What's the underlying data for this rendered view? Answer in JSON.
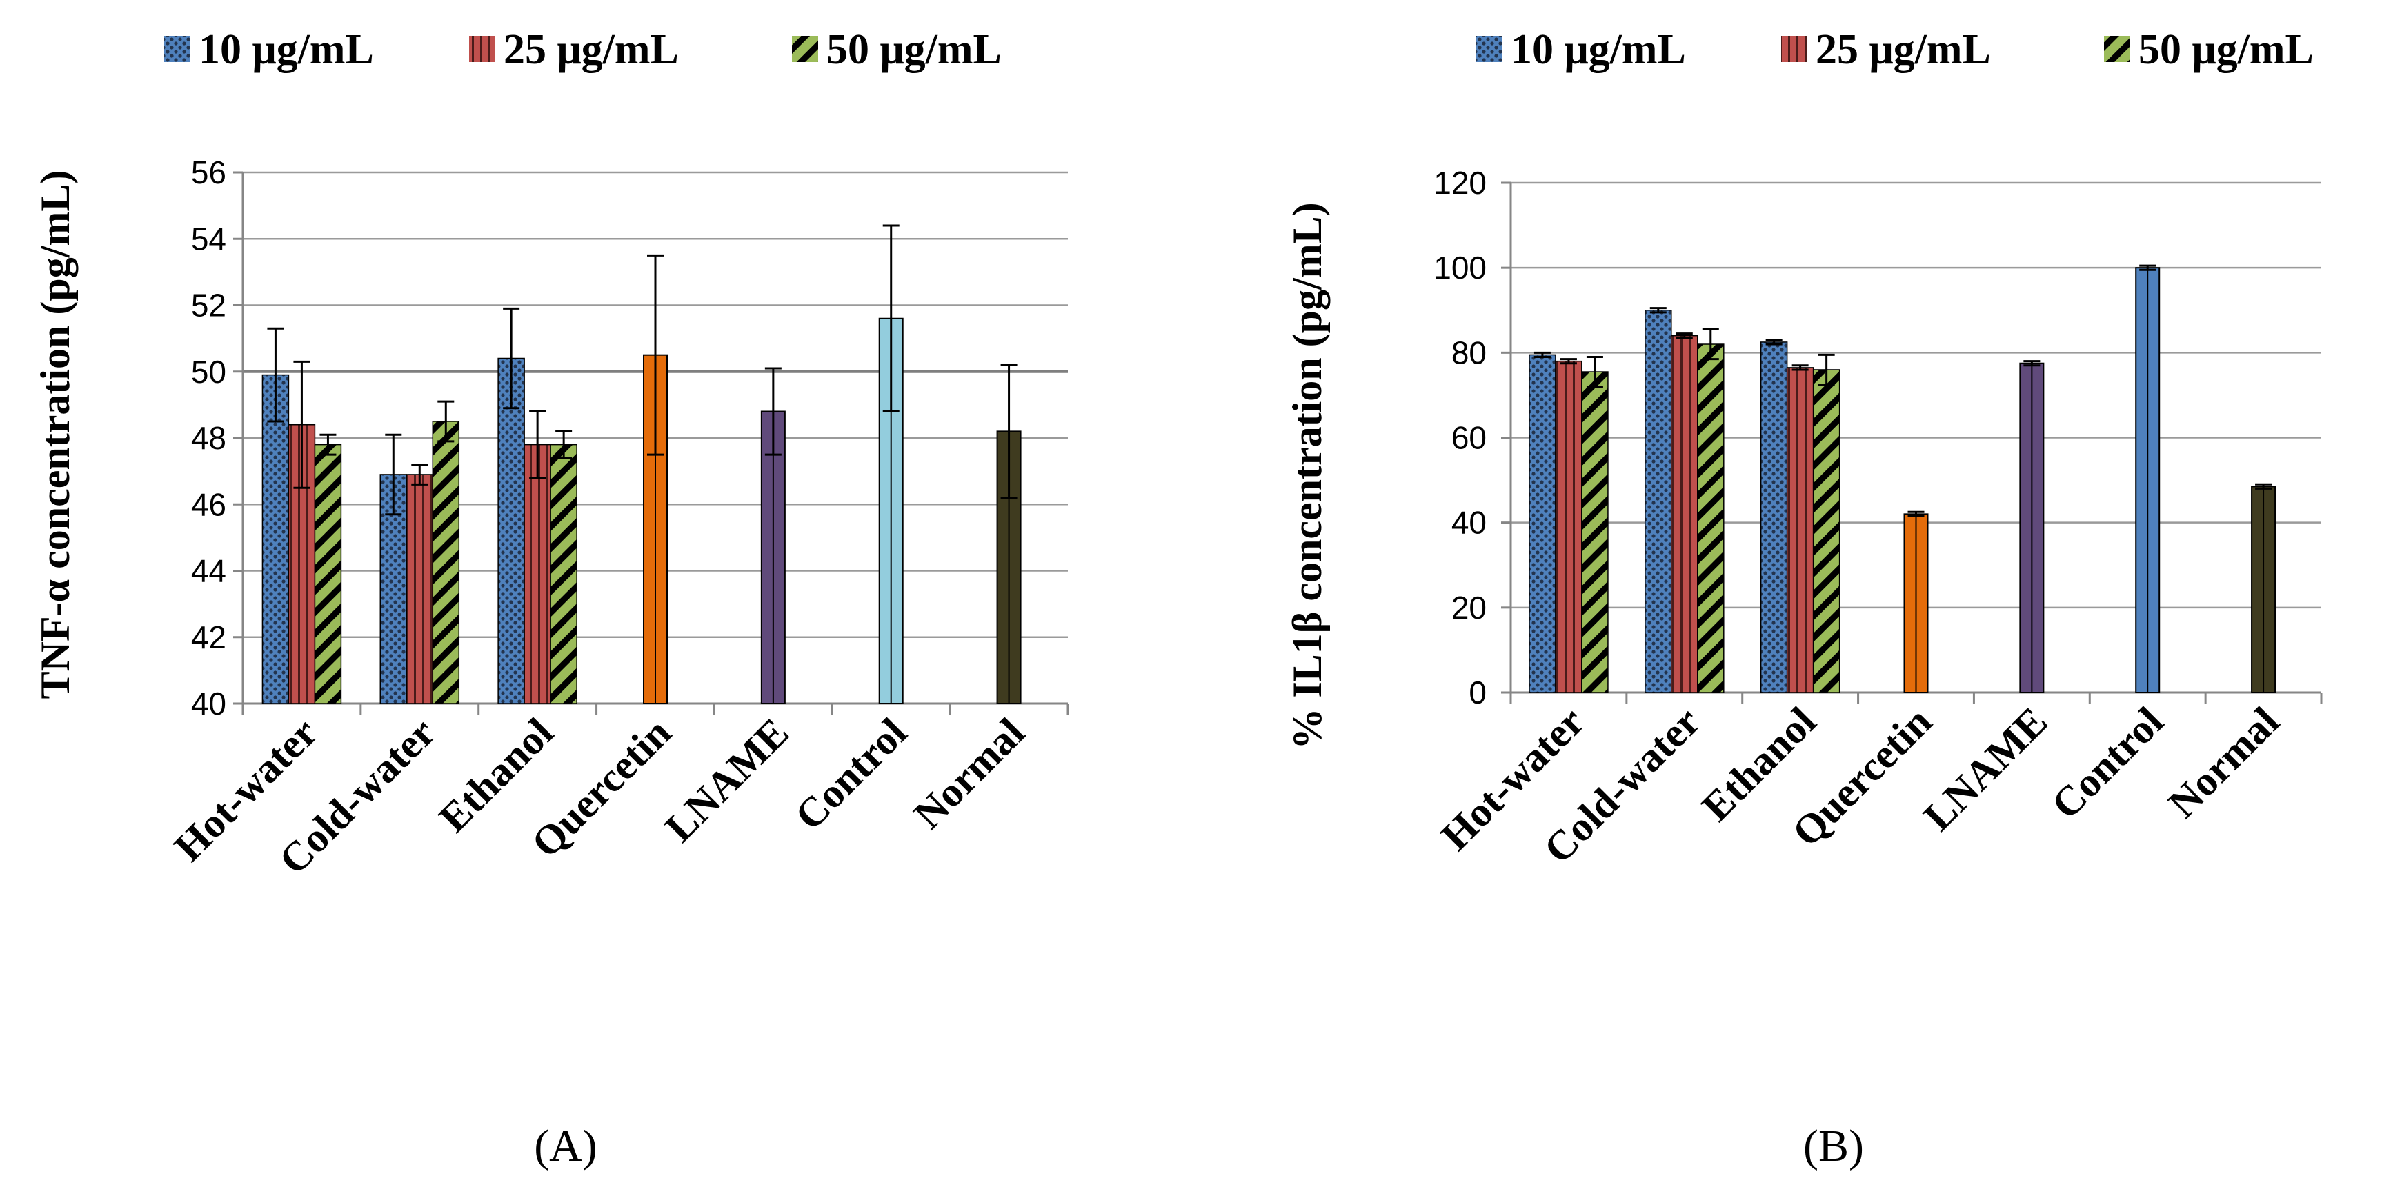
{
  "chart_data": [
    {
      "type": "bar",
      "panel_label": "(A)",
      "ylabel": "TNF-α concentration (pg/mL)",
      "ylim": [
        40,
        56
      ],
      "yticks": [
        40,
        42,
        44,
        46,
        48,
        50,
        52,
        54,
        56
      ],
      "categories": [
        "Hot-water",
        "Cold-water",
        "Ethanol",
        "Quercetin",
        "LNAME",
        "Control",
        "Normal"
      ],
      "legend": [
        "10 μg/mL",
        "25 μg/mL",
        "50 μg/mL"
      ],
      "grid": true,
      "series": [
        {
          "name": "10 μg/mL",
          "color": "#4f81bd",
          "pattern": "dots",
          "values": [
            49.9,
            46.9,
            50.4,
            null,
            null,
            null,
            null
          ],
          "errors": [
            1.4,
            1.2,
            1.5,
            null,
            null,
            null,
            null
          ]
        },
        {
          "name": "25 μg/mL",
          "color": "#c0504d",
          "pattern": "vlines",
          "values": [
            48.4,
            46.9,
            47.8,
            null,
            null,
            null,
            null
          ],
          "errors": [
            1.9,
            0.3,
            1.0,
            null,
            null,
            null,
            null
          ]
        },
        {
          "name": "50 μg/mL",
          "color": "#9bbb59",
          "pattern": "diag",
          "values": [
            47.8,
            48.5,
            47.8,
            null,
            null,
            null,
            null
          ],
          "errors": [
            0.3,
            0.6,
            0.4,
            null,
            null,
            null,
            null
          ]
        }
      ],
      "singles": [
        {
          "category": "Quercetin",
          "value": 50.5,
          "error": 3.0,
          "color": "#e46c0a"
        },
        {
          "category": "LNAME",
          "value": 48.8,
          "error": 1.3,
          "color": "#604a7b"
        },
        {
          "category": "Control",
          "value": 51.6,
          "error": 2.8,
          "color": "#93cddd"
        },
        {
          "category": "Normal",
          "value": 48.2,
          "error": 2.0,
          "color": "#3f3b1f"
        }
      ]
    },
    {
      "type": "bar",
      "panel_label": "(B)",
      "ylabel": "% IL1β concentration (pg/mL)",
      "ylim": [
        0,
        120
      ],
      "yticks": [
        0,
        20,
        40,
        60,
        80,
        100,
        120
      ],
      "categories": [
        "Hot-water",
        "Cold-water",
        "Ethanol",
        "Quercetin",
        "LNAME",
        "Control",
        "Normal"
      ],
      "legend": [
        "10 μg/mL",
        "25 μg/mL",
        "50 μg/mL"
      ],
      "grid": true,
      "series": [
        {
          "name": "10 μg/mL",
          "color": "#4f81bd",
          "pattern": "dots",
          "values": [
            79.5,
            90,
            82.5,
            null,
            null,
            null,
            null
          ],
          "errors": [
            0.5,
            0.5,
            0.5,
            null,
            null,
            null,
            null
          ]
        },
        {
          "name": "25 μg/mL",
          "color": "#c0504d",
          "pattern": "vlines",
          "values": [
            78,
            84,
            76.5,
            null,
            null,
            null,
            null
          ],
          "errors": [
            0.5,
            0.5,
            0.5,
            null,
            null,
            null,
            null
          ]
        },
        {
          "name": "50 μg/mL",
          "color": "#9bbb59",
          "pattern": "diag",
          "values": [
            75.5,
            82,
            76,
            null,
            null,
            null,
            null
          ],
          "errors": [
            3.5,
            3.5,
            3.5,
            null,
            null,
            null,
            null
          ]
        }
      ],
      "singles": [
        {
          "category": "Quercetin",
          "value": 42,
          "error": 0.5,
          "color": "#e46c0a"
        },
        {
          "category": "LNAME",
          "value": 77.5,
          "error": 0.5,
          "color": "#604a7b"
        },
        {
          "category": "Control",
          "value": 100,
          "error": 0.5,
          "color": "#4f81bd"
        },
        {
          "category": "Normal",
          "value": 48.5,
          "error": 0.5,
          "color": "#3f3b1f"
        }
      ]
    }
  ]
}
